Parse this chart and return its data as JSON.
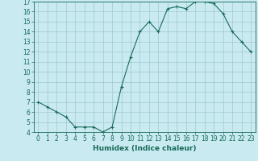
{
  "x": [
    0,
    1,
    2,
    3,
    4,
    5,
    6,
    7,
    8,
    9,
    10,
    11,
    12,
    13,
    14,
    15,
    16,
    17,
    18,
    19,
    20,
    21,
    22,
    23
  ],
  "y": [
    7,
    6.5,
    6,
    5.5,
    4.5,
    4.5,
    4.5,
    4,
    4.5,
    8.5,
    11.5,
    14,
    15,
    14,
    16.3,
    16.5,
    16.3,
    17,
    17,
    16.8,
    15.8,
    14,
    13,
    12
  ],
  "line_color": "#1a6b5a",
  "marker": "+",
  "marker_size": 3,
  "marker_linewidth": 0.8,
  "line_width": 0.8,
  "bg_color": "#c8eaf0",
  "grid_color": "#a0c8d0",
  "xlabel": "Humidex (Indice chaleur)",
  "ylim": [
    4,
    17
  ],
  "xlim": [
    -0.5,
    23.5
  ],
  "yticks": [
    4,
    5,
    6,
    7,
    8,
    9,
    10,
    11,
    12,
    13,
    14,
    15,
    16,
    17
  ],
  "xticks": [
    0,
    1,
    2,
    3,
    4,
    5,
    6,
    7,
    8,
    9,
    10,
    11,
    12,
    13,
    14,
    15,
    16,
    17,
    18,
    19,
    20,
    21,
    22,
    23
  ],
  "tick_label_fontsize": 5.5,
  "xlabel_fontsize": 6.5,
  "axis_color": "#1a6b5a",
  "spine_color": "#1a6b5a"
}
